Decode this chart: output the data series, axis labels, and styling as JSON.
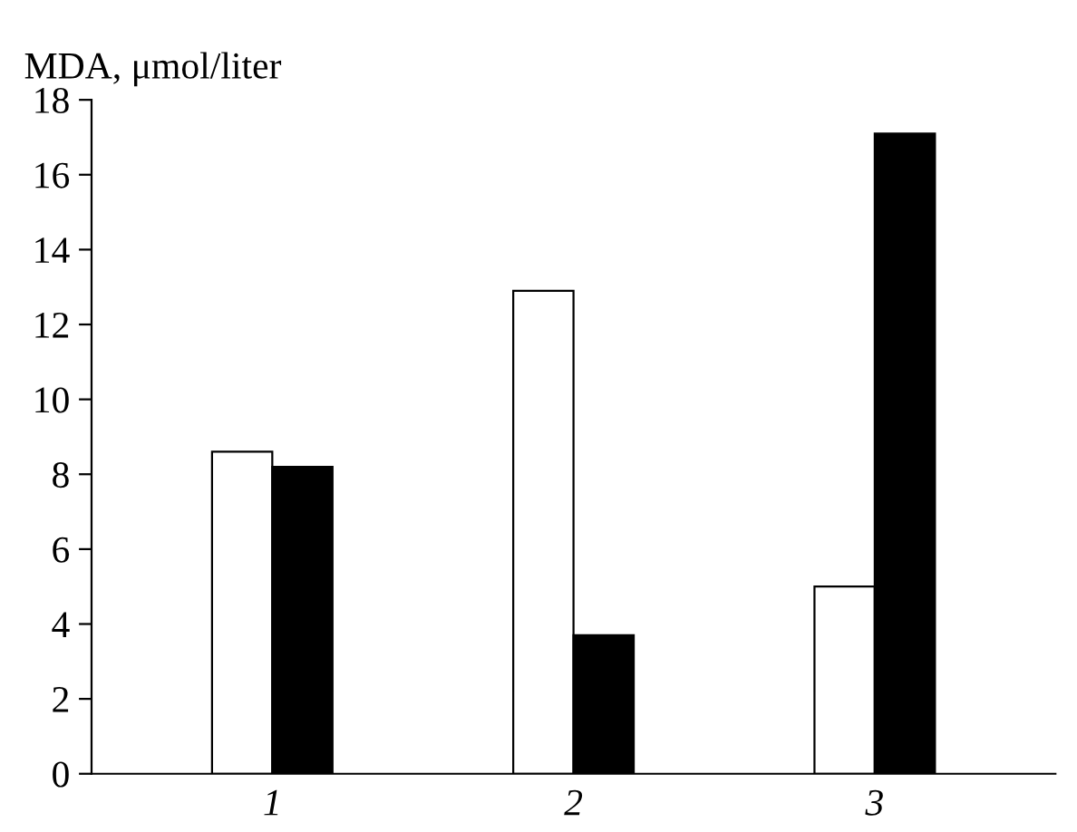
{
  "chart_data": {
    "type": "bar",
    "ylabel": "MDA, μmol/liter",
    "categories": [
      "1",
      "2",
      "3"
    ],
    "series": [
      {
        "color": "#ffffff",
        "values": [
          8.6,
          12.9,
          5.0
        ]
      },
      {
        "color": "#000000",
        "values": [
          8.2,
          3.7,
          17.1
        ]
      }
    ],
    "ylim": [
      0,
      18
    ],
    "yticks": [
      0,
      2,
      4,
      6,
      8,
      10,
      12,
      14,
      16,
      18
    ],
    "grid": false
  }
}
